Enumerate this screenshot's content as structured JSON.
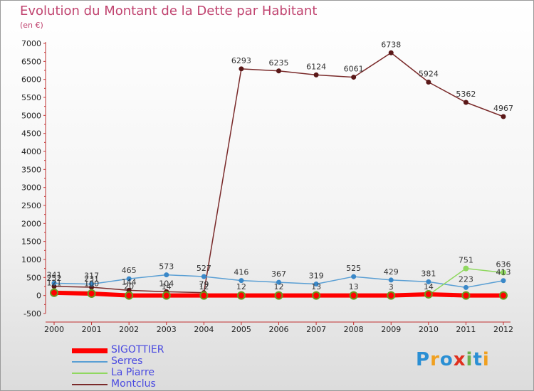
{
  "header": {
    "title": "Evolution du Montant de la Dette par Habitant",
    "subtitle": "(en €)"
  },
  "logo": {
    "text": "Proxiti",
    "letter_colors": [
      "#2a8fd4",
      "#f0a020",
      "#2a8fd4",
      "#e0301e",
      "#6ab04c",
      "#2a8fd4",
      "#f0a020"
    ]
  },
  "chart_data": {
    "type": "line",
    "title": "Evolution du Montant de la Dette par Habitant",
    "subtitle": "(en €)",
    "xlabel": "",
    "ylabel": "",
    "x": [
      2000,
      2001,
      2002,
      2003,
      2004,
      2005,
      2006,
      2007,
      2008,
      2009,
      2010,
      2011,
      2012
    ],
    "ylim": [
      -500,
      7000
    ],
    "yticks": [
      -500,
      0,
      500,
      1000,
      1500,
      2000,
      2500,
      3000,
      3500,
      4000,
      4500,
      5000,
      5500,
      6000,
      6500,
      7000
    ],
    "grid": false,
    "legend_position": "bottom-left",
    "series": [
      {
        "name": "SIGOTTIER",
        "color": "#ff0000",
        "values": [
          76,
          53,
          0,
          0,
          0,
          0,
          0,
          0,
          0,
          0,
          34,
          0,
          0
        ]
      },
      {
        "name": "Serres",
        "color": "#5a9fd4",
        "values": [
          341,
          317,
          465,
          573,
          527,
          416,
          367,
          319,
          525,
          429,
          381,
          223,
          413
        ]
      },
      {
        "name": "La Piarre",
        "color": "#90d860",
        "values": [
          121,
          100,
          20,
          14,
          12,
          12,
          12,
          13,
          13,
          3,
          14,
          751,
          636
        ]
      },
      {
        "name": "Montclus",
        "color": "#7a2a2a",
        "values": [
          252,
          231,
          144,
          104,
          79,
          6293,
          6235,
          6124,
          6061,
          6738,
          5924,
          5362,
          4967
        ]
      }
    ]
  }
}
